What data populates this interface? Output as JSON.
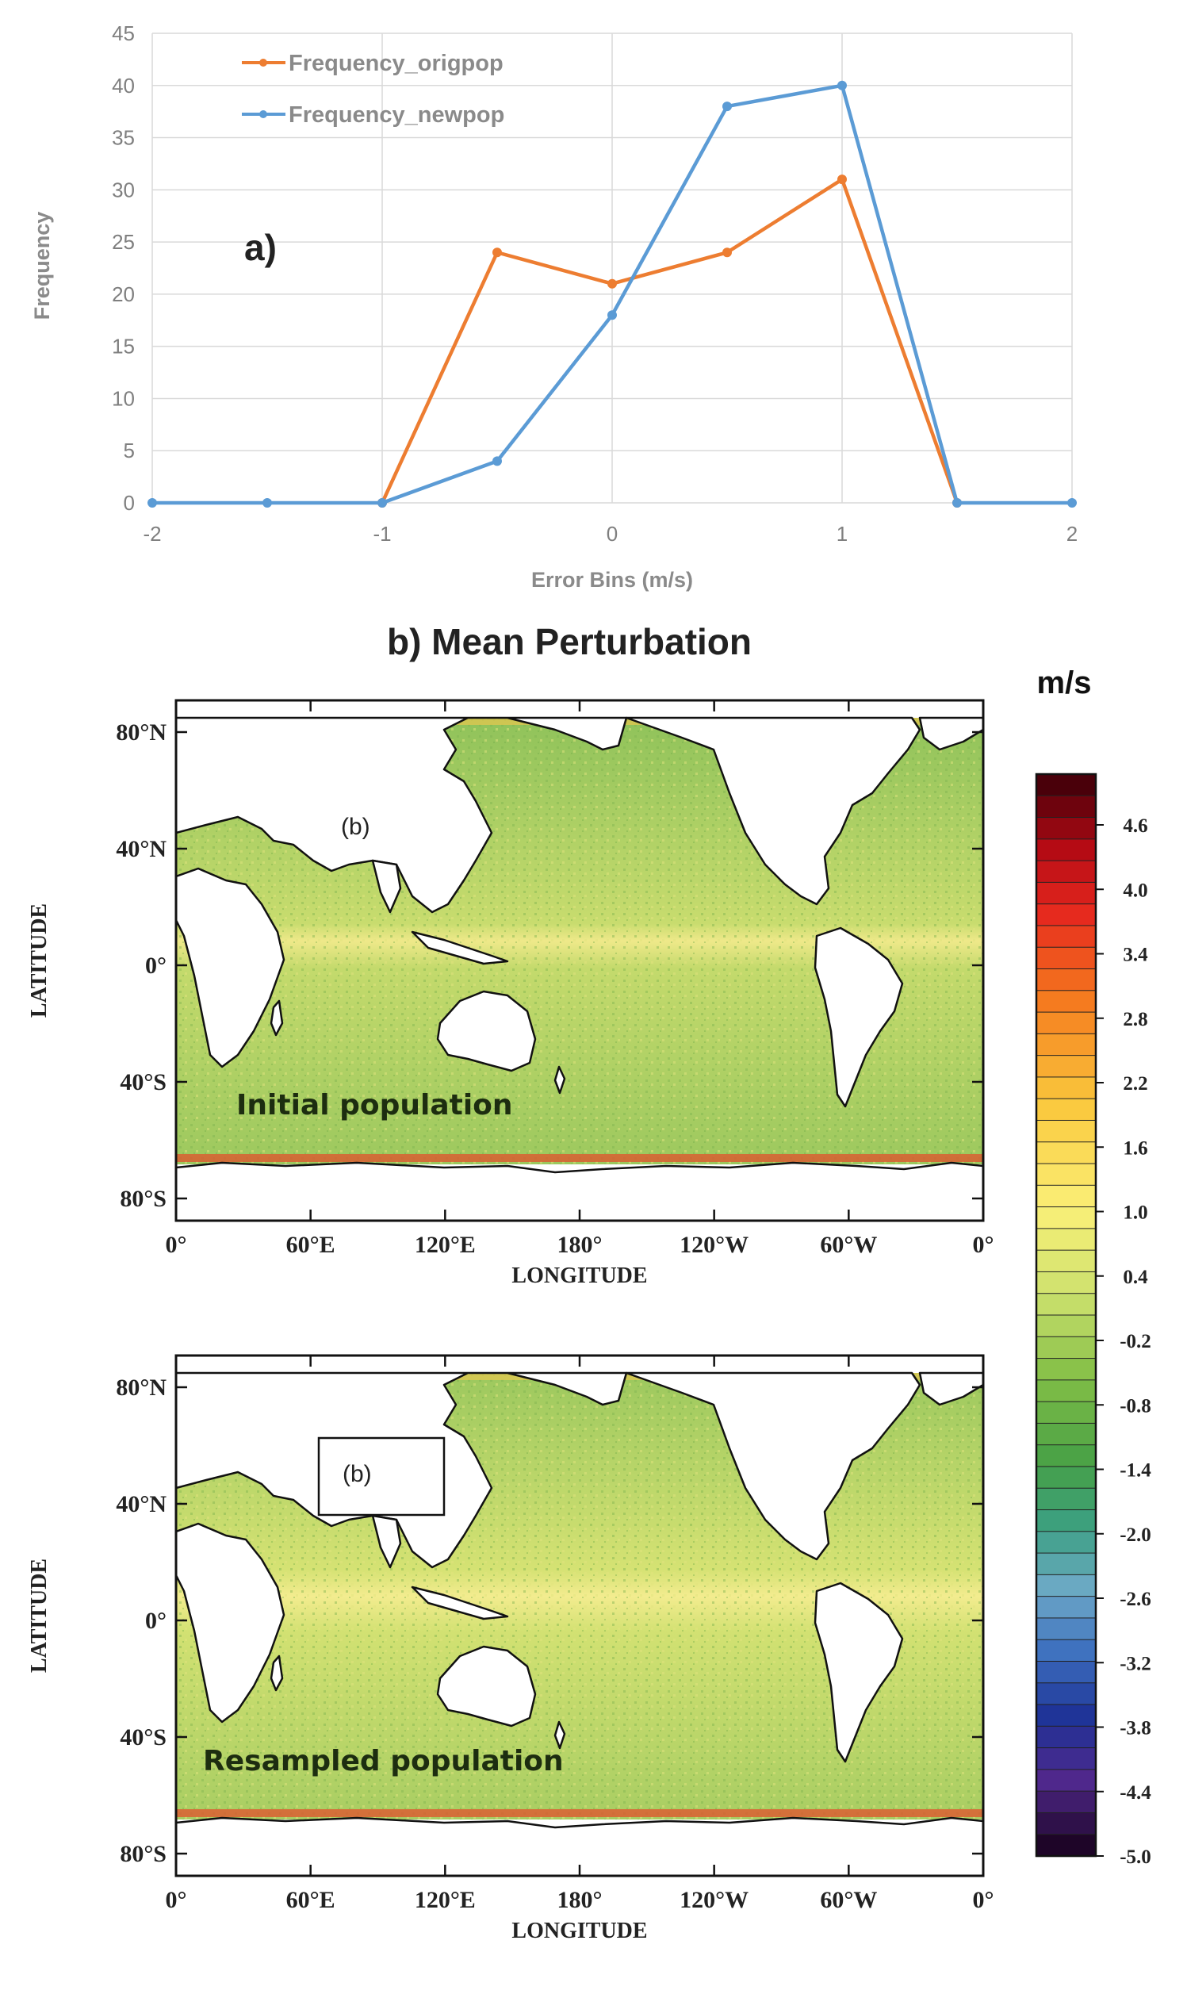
{
  "chart_data": [
    {
      "type": "line",
      "panel_label": "a)",
      "xlabel": "Error Bins (m/s)",
      "ylabel": "Frequency",
      "xlim": [
        -2,
        2
      ],
      "ylim": [
        0,
        45
      ],
      "xticks": [
        "-2",
        "-1",
        "0",
        "1",
        "2"
      ],
      "yticks": [
        "0",
        "5",
        "10",
        "15",
        "20",
        "25",
        "30",
        "35",
        "40",
        "45"
      ],
      "grid": true,
      "legend_position": "top-left",
      "series": [
        {
          "name": "Frequency_origpop",
          "color": "#ed7d31",
          "x": [
            -1,
            -0.5,
            0,
            0.5,
            1,
            1.5
          ],
          "values": [
            0,
            24,
            21,
            24,
            31,
            0
          ]
        },
        {
          "name": "Frequency_newpop",
          "color": "#5b9bd5",
          "x": [
            -2,
            -1.5,
            -1,
            -0.5,
            0,
            0.5,
            1,
            1.5,
            2
          ],
          "values": [
            0,
            0,
            0,
            4,
            18,
            38,
            40,
            0,
            0
          ]
        }
      ]
    },
    {
      "type": "heatmap",
      "title": "b) Mean Perturbation",
      "unit": "m/s",
      "colorbar_ticks": [
        "4.6",
        "4.0",
        "3.4",
        "2.8",
        "2.2",
        "1.6",
        "1.0",
        "0.4",
        "-0.2",
        "-0.8",
        "-1.4",
        "-2.0",
        "-2.6",
        "-3.2",
        "-3.8",
        "-4.4",
        "-5.0"
      ],
      "colorbar_range": [
        -5.0,
        5.0
      ],
      "maps": [
        {
          "label": "Initial population",
          "note": "(b)",
          "ylabel": "LATITUDE",
          "xlabel": "LONGITUDE",
          "yticks": [
            "80°N",
            "40°N",
            "0°",
            "40°S",
            "80°S"
          ],
          "xticks": [
            "0°",
            "60°E",
            "120°E",
            "180°",
            "120°W",
            "60°W",
            "0°"
          ]
        },
        {
          "label": "Resampled population",
          "note": "(b)",
          "ylabel": "LATITUDE",
          "xlabel": "LONGITUDE",
          "yticks": [
            "80°N",
            "40°N",
            "0°",
            "40°S",
            "80°S"
          ],
          "xticks": [
            "0°",
            "60°E",
            "120°E",
            "180°",
            "120°W",
            "60°W",
            "0°"
          ]
        }
      ]
    }
  ]
}
